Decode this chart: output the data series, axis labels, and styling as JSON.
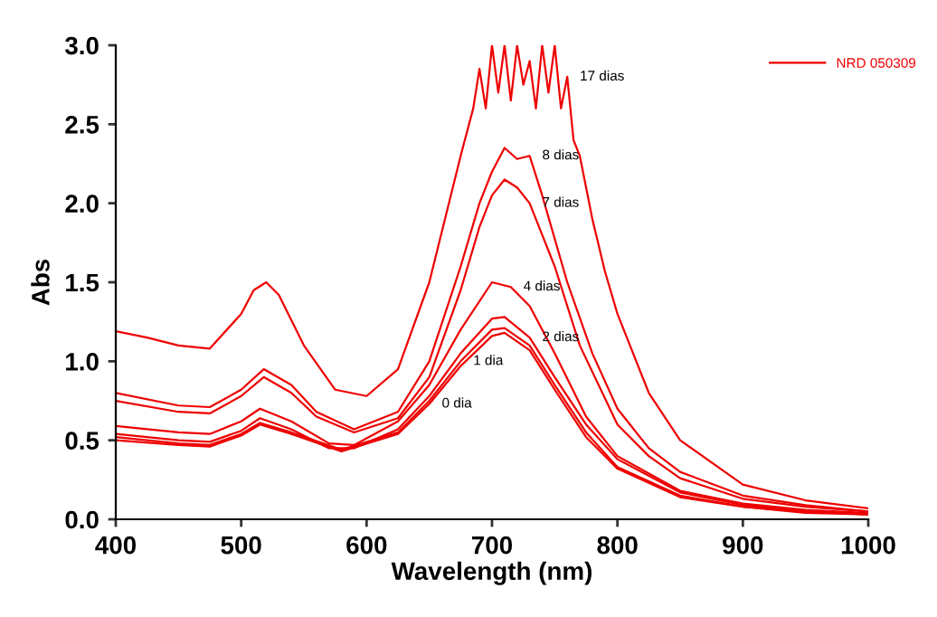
{
  "chart_data": {
    "type": "line",
    "xlabel": "Wavelength (nm)",
    "ylabel": "Abs",
    "xlim": [
      400,
      1000
    ],
    "xticks": [
      400,
      500,
      600,
      700,
      800,
      900,
      1000
    ],
    "ylim": [
      0.0,
      3.0
    ],
    "yticks": [
      {
        "value": 0,
        "label": "0.0"
      },
      {
        "value": 0.5,
        "label": "0.5"
      },
      {
        "value": 1,
        "label": "1.0"
      },
      {
        "value": 1.5,
        "label": "1.5"
      },
      {
        "value": 2,
        "label": "2.0"
      },
      {
        "value": 2.5,
        "label": "2.5"
      },
      {
        "value": 3,
        "label": "3.0"
      }
    ],
    "grid": false,
    "legend": "top right",
    "marker": "none",
    "line_style": "solid",
    "series": [
      {
        "name": "NRD 050309",
        "color": "#ee0000",
        "x": [
          400,
          450,
          475,
          500,
          515,
          540,
          580,
          625,
          650,
          675,
          700,
          710,
          730,
          750,
          775,
          800,
          850,
          900,
          950,
          1000
        ],
        "values": [
          0.5,
          0.47,
          0.46,
          0.53,
          0.6,
          0.54,
          0.43,
          0.54,
          0.73,
          0.97,
          1.16,
          1.18,
          1.07,
          0.82,
          0.52,
          0.32,
          0.14,
          0.08,
          0.04,
          0.03
        ]
      },
      {
        "color": "#ee0000",
        "x": [
          400,
          450,
          475,
          500,
          515,
          540,
          580,
          625,
          650,
          675,
          700,
          710,
          730,
          750,
          775,
          800,
          850,
          900,
          950,
          1000
        ],
        "values": [
          0.52,
          0.48,
          0.47,
          0.54,
          0.61,
          0.55,
          0.44,
          0.55,
          0.75,
          1.0,
          1.2,
          1.21,
          1.1,
          0.85,
          0.55,
          0.33,
          0.15,
          0.08,
          0.05,
          0.03
        ]
      },
      {
        "color": "#ee0000",
        "x": [
          400,
          450,
          475,
          500,
          515,
          540,
          570,
          590,
          625,
          650,
          675,
          700,
          710,
          730,
          750,
          775,
          800,
          850,
          900,
          950,
          1000
        ],
        "values": [
          0.54,
          0.5,
          0.49,
          0.56,
          0.64,
          0.57,
          0.45,
          0.45,
          0.57,
          0.78,
          1.05,
          1.27,
          1.28,
          1.15,
          0.9,
          0.6,
          0.38,
          0.17,
          0.09,
          0.05,
          0.03
        ]
      },
      {
        "color": "#ee0000",
        "x": [
          400,
          450,
          475,
          500,
          515,
          540,
          570,
          590,
          625,
          650,
          675,
          700,
          715,
          730,
          750,
          775,
          800,
          850,
          900,
          950,
          1000
        ],
        "values": [
          0.59,
          0.55,
          0.54,
          0.62,
          0.7,
          0.62,
          0.48,
          0.47,
          0.62,
          0.85,
          1.2,
          1.5,
          1.47,
          1.35,
          1.05,
          0.65,
          0.4,
          0.18,
          0.1,
          0.06,
          0.04
        ]
      },
      {
        "color": "#ee0000",
        "x": [
          400,
          450,
          475,
          500,
          518,
          540,
          560,
          590,
          625,
          650,
          675,
          690,
          700,
          710,
          720,
          730,
          750,
          770,
          800,
          825,
          850,
          900,
          950,
          1000
        ],
        "values": [
          0.75,
          0.68,
          0.67,
          0.78,
          0.9,
          0.8,
          0.65,
          0.55,
          0.64,
          0.9,
          1.45,
          1.85,
          2.05,
          2.15,
          2.1,
          2.0,
          1.6,
          1.1,
          0.6,
          0.4,
          0.26,
          0.13,
          0.08,
          0.05
        ]
      },
      {
        "color": "#ee0000",
        "x": [
          400,
          450,
          475,
          500,
          518,
          540,
          560,
          590,
          625,
          650,
          675,
          690,
          700,
          710,
          720,
          730,
          740,
          760,
          780,
          800,
          825,
          850,
          900,
          950,
          1000
        ],
        "values": [
          0.8,
          0.72,
          0.71,
          0.82,
          0.95,
          0.85,
          0.68,
          0.57,
          0.68,
          1.0,
          1.6,
          2.0,
          2.2,
          2.35,
          2.28,
          2.3,
          2.05,
          1.5,
          1.05,
          0.7,
          0.45,
          0.3,
          0.15,
          0.09,
          0.05
        ]
      },
      {
        "color": "#ee0000",
        "x": [
          400,
          425,
          450,
          475,
          500,
          510,
          520,
          530,
          550,
          575,
          600,
          625,
          650,
          675,
          685,
          690,
          695,
          700,
          705,
          710,
          715,
          720,
          725,
          730,
          735,
          740,
          745,
          750,
          755,
          760,
          765,
          770,
          780,
          790,
          800,
          825,
          850,
          900,
          950,
          1000
        ],
        "values": [
          1.19,
          1.15,
          1.1,
          1.08,
          1.3,
          1.45,
          1.5,
          1.42,
          1.1,
          0.82,
          0.78,
          0.95,
          1.5,
          2.3,
          2.6,
          2.85,
          2.6,
          3.0,
          2.7,
          3.0,
          2.65,
          3.0,
          2.75,
          2.9,
          2.6,
          3.0,
          2.7,
          3.0,
          2.6,
          2.8,
          2.4,
          2.3,
          1.9,
          1.57,
          1.3,
          0.8,
          0.5,
          0.22,
          0.12,
          0.07
        ]
      }
    ],
    "annotations": [
      {
        "text": "0 dia",
        "x": 650,
        "y": 0.73
      },
      {
        "text": "1 dia",
        "x": 675,
        "y": 1.0
      },
      {
        "text": "2 dias",
        "x": 730,
        "y": 1.15
      },
      {
        "text": "4 dias",
        "x": 715,
        "y": 1.47
      },
      {
        "text": "7 dias",
        "x": 730,
        "y": 2.0
      },
      {
        "text": "8 dias",
        "x": 730,
        "y": 2.3
      },
      {
        "text": "17 dias",
        "x": 760,
        "y": 2.8
      }
    ]
  }
}
